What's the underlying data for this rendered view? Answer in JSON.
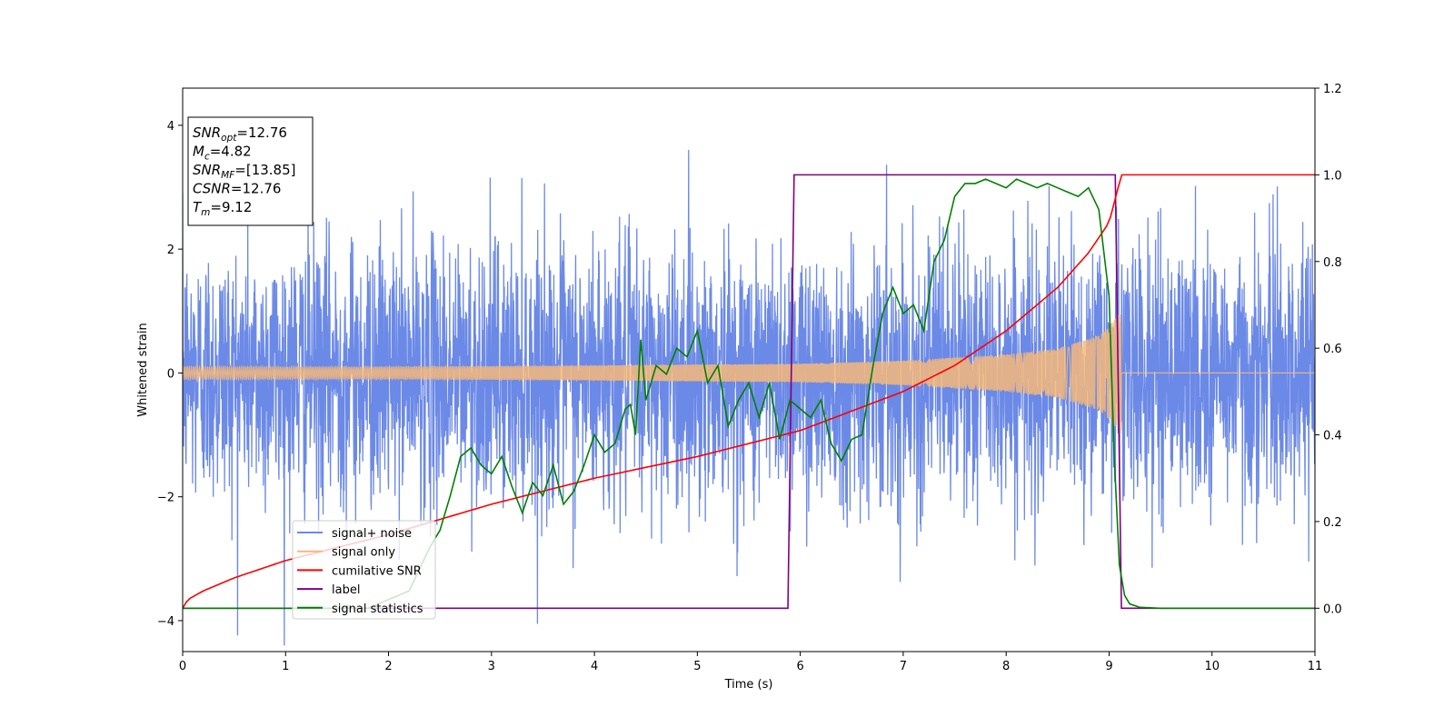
{
  "chart_data": {
    "type": "line",
    "xlabel": "Time (s)",
    "ylabel": "Whitened strain",
    "xlim": [
      0,
      11
    ],
    "ylim": [
      -4.5,
      4.6
    ],
    "y2lim": [
      -0.1,
      1.2
    ],
    "xticks": [
      0,
      1,
      2,
      3,
      4,
      5,
      6,
      7,
      8,
      9,
      10,
      11
    ],
    "yticks": [
      -4,
      -2,
      0,
      2,
      4
    ],
    "y2ticks": [
      "0.0",
      "0.2",
      "0.4",
      "0.6",
      "0.8",
      "1.0",
      "1.2"
    ],
    "grid": false,
    "legend_position": "lower-left",
    "annotation": [
      {
        "base": "SNR",
        "sub": "opt",
        "value": "=12.76"
      },
      {
        "base": "M",
        "sub": "c",
        "value": "=4.82"
      },
      {
        "base": "SNR",
        "sub": "MF",
        "value": "=[13.85]"
      },
      {
        "base": "CSNR",
        "sub": "",
        "value": "=12.76"
      },
      {
        "base": "T",
        "sub": "m",
        "value": "=9.12"
      }
    ],
    "series": [
      {
        "name": "signal+ noise",
        "color": "#6b89e6",
        "axis": "left",
        "style": "noisy-band",
        "noise_std": 1.05,
        "range": [
          0,
          11
        ]
      },
      {
        "name": "signal only",
        "color": "#f5b87a",
        "axis": "left",
        "style": "chirp",
        "envelope": {
          "x": [
            0,
            2,
            4,
            6,
            7,
            8,
            8.5,
            8.9,
            9.05,
            9.12
          ],
          "y": [
            0.1,
            0.1,
            0.12,
            0.15,
            0.2,
            0.3,
            0.4,
            0.6,
            0.85,
            1.0
          ]
        },
        "merger_time": 9.12
      },
      {
        "name": "cumilative SNR",
        "color": "#ff0000",
        "axis": "right",
        "x": [
          0,
          0.05,
          0.2,
          0.5,
          1,
          2,
          3,
          4,
          5,
          6,
          7,
          7.5,
          8,
          8.5,
          8.8,
          9,
          9.12,
          11
        ],
        "y": [
          0.0,
          0.02,
          0.04,
          0.07,
          0.11,
          0.17,
          0.24,
          0.3,
          0.35,
          0.41,
          0.5,
          0.56,
          0.64,
          0.74,
          0.82,
          0.89,
          1.0,
          1.0
        ]
      },
      {
        "name": "label",
        "color": "#800080",
        "axis": "right",
        "x": [
          0,
          5.88,
          5.94,
          9.06,
          9.12,
          11
        ],
        "y": [
          0,
          0,
          1,
          1,
          0,
          0
        ]
      },
      {
        "name": "signal statistics",
        "color": "#008000",
        "axis": "right",
        "x": [
          0,
          1,
          1.8,
          2.2,
          2.4,
          2.5,
          2.6,
          2.7,
          2.8,
          2.9,
          3.0,
          3.1,
          3.2,
          3.3,
          3.4,
          3.5,
          3.6,
          3.7,
          3.8,
          3.9,
          4.0,
          4.1,
          4.2,
          4.3,
          4.35,
          4.4,
          4.45,
          4.5,
          4.6,
          4.7,
          4.8,
          4.9,
          5.0,
          5.1,
          5.2,
          5.3,
          5.4,
          5.5,
          5.6,
          5.7,
          5.8,
          5.9,
          6.0,
          6.1,
          6.2,
          6.3,
          6.4,
          6.5,
          6.6,
          6.7,
          6.8,
          6.9,
          7.0,
          7.1,
          7.2,
          7.3,
          7.4,
          7.5,
          7.6,
          7.7,
          7.8,
          7.9,
          8.0,
          8.1,
          8.2,
          8.3,
          8.4,
          8.5,
          8.6,
          8.7,
          8.8,
          8.9,
          9.0,
          9.05,
          9.1,
          9.15,
          9.2,
          9.3,
          9.5,
          11
        ],
        "y": [
          0.0,
          0.0,
          0.0,
          0.04,
          0.14,
          0.18,
          0.26,
          0.35,
          0.37,
          0.33,
          0.31,
          0.35,
          0.28,
          0.22,
          0.29,
          0.26,
          0.33,
          0.24,
          0.27,
          0.33,
          0.4,
          0.36,
          0.38,
          0.46,
          0.47,
          0.4,
          0.62,
          0.48,
          0.56,
          0.54,
          0.6,
          0.58,
          0.64,
          0.52,
          0.56,
          0.42,
          0.48,
          0.52,
          0.44,
          0.52,
          0.39,
          0.48,
          0.46,
          0.44,
          0.48,
          0.38,
          0.34,
          0.39,
          0.4,
          0.55,
          0.68,
          0.74,
          0.68,
          0.7,
          0.64,
          0.8,
          0.85,
          0.95,
          0.98,
          0.98,
          0.99,
          0.98,
          0.97,
          0.99,
          0.98,
          0.97,
          0.98,
          0.97,
          0.96,
          0.95,
          0.97,
          0.92,
          0.72,
          0.35,
          0.1,
          0.03,
          0.01,
          0.002,
          0.0,
          0.0
        ]
      }
    ]
  }
}
